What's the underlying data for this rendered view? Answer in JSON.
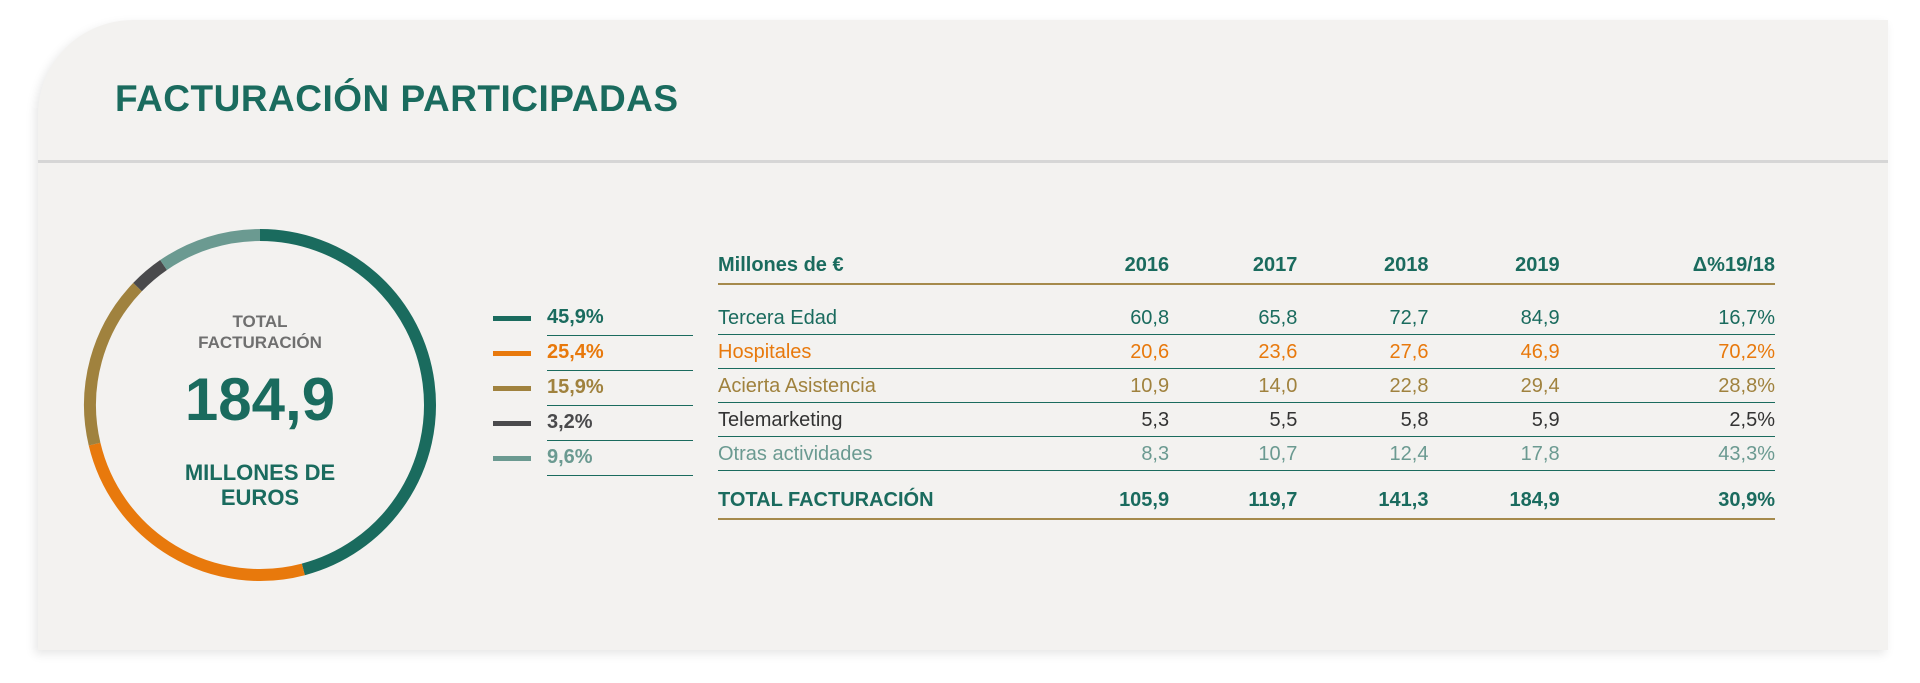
{
  "title": "FACTURACIÓN PARTICIPADAS",
  "donut": {
    "label_line1": "TOTAL",
    "label_line2": "FACTURACIÓN",
    "value": "184,9",
    "unit_line1": "MILLONES DE",
    "unit_line2": "EUROS"
  },
  "legend": [
    {
      "value": "45,9%",
      "color": "#1a6b5e"
    },
    {
      "value": "25,4%",
      "color": "#e8790c"
    },
    {
      "value": "15,9%",
      "color": "#a0823e"
    },
    {
      "value": "3,2%",
      "color": "#4a4a4c"
    },
    {
      "value": "9,6%",
      "color": "#6b9a91"
    }
  ],
  "table": {
    "headers": [
      "Millones de €",
      "2016",
      "2017",
      "2018",
      "2019",
      "Δ%19/18"
    ],
    "rows": [
      {
        "name": "Tercera Edad",
        "color": "#1a6b5e",
        "values": [
          "60,8",
          "65,8",
          "72,7",
          "84,9",
          "16,7%"
        ]
      },
      {
        "name": "Hospitales",
        "color": "#e8790c",
        "values": [
          "20,6",
          "23,6",
          "27,6",
          "46,9",
          "70,2%"
        ]
      },
      {
        "name": "Acierta Asistencia",
        "color": "#a0823e",
        "values": [
          "10,9",
          "14,0",
          "22,8",
          "29,4",
          "28,8%"
        ]
      },
      {
        "name": "Telemarketing",
        "color": "#333333",
        "values": [
          "5,3",
          "5,5",
          "5,8",
          "5,9",
          "2,5%"
        ]
      },
      {
        "name": "Otras actividades",
        "color": "#6b9a91",
        "values": [
          "8,3",
          "10,7",
          "12,4",
          "17,8",
          "43,3%"
        ]
      }
    ],
    "total": {
      "name": "TOTAL FACTURACIÓN",
      "values": [
        "105,9",
        "119,7",
        "141,3",
        "184,9",
        "30,9%"
      ]
    }
  },
  "chart_data": {
    "type": "pie",
    "categories": [
      "Tercera Edad",
      "Hospitales",
      "Acierta Asistencia",
      "Telemarketing",
      "Otras actividades"
    ],
    "values": [
      45.9,
      25.4,
      15.9,
      3.2,
      9.6
    ],
    "colors": [
      "#1a6b5e",
      "#e8790c",
      "#a0823e",
      "#4a4a4c",
      "#6b9a91"
    ],
    "title": "FACTURACIÓN PARTICIPADAS"
  }
}
